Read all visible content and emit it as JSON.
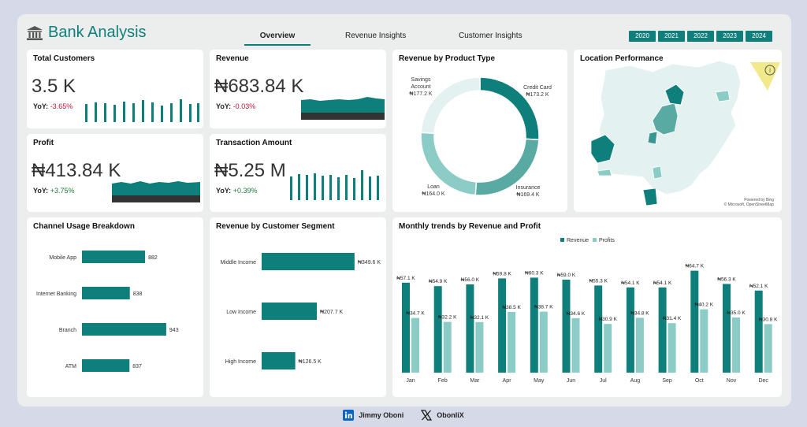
{
  "header": {
    "title": "Bank Analysis",
    "tabs": [
      "Overview",
      "Revenue Insights",
      "Customer Insights"
    ],
    "years": [
      "2020",
      "2021",
      "2022",
      "2023",
      "2024"
    ]
  },
  "kpis": {
    "customers": {
      "title": "Total Customers",
      "value": "3.5 K",
      "yoy_label": "YoY:",
      "yoy": "-3.65%"
    },
    "revenue": {
      "title": "Revenue",
      "value": "₦683.84 K",
      "yoy_label": "YoY:",
      "yoy": "-0.03%"
    },
    "profit": {
      "title": "Profit",
      "value": "₦413.84 K",
      "yoy_label": "YoY:",
      "yoy": "+3.75%"
    },
    "transaction": {
      "title": "Transaction Amount",
      "value": "₦5.25 M",
      "yoy_label": "YoY:",
      "yoy": "+0.39%"
    }
  },
  "location": {
    "title": "Location Performance",
    "credit_1": "Powered by Bing",
    "credit_2": "© Microsoft, OpenStreetMap",
    "info_icon": "info-icon"
  },
  "colors": {
    "teal": "#0f7f7b",
    "light_teal": "#8cccc7",
    "pale": "#e3f2f1"
  },
  "footer": {
    "linkedin": "Jimmy Oboni",
    "x": "ObonIiX"
  },
  "chart_data": [
    {
      "id": "product",
      "type": "pie",
      "title": "Revenue by Product Type",
      "labels": [
        "Savings Account",
        "Credit Card",
        "Insurance",
        "Loan"
      ],
      "display": [
        "₦177.2 K",
        "₦173.2 K",
        "₦169.4 K",
        "₦164.0 K"
      ],
      "values": [
        177.2,
        173.2,
        169.4,
        164.0
      ]
    },
    {
      "id": "channel",
      "type": "bar",
      "title": "Channel Usage Breakdown",
      "categories": [
        "Mobile App",
        "Internet Banking",
        "Branch",
        "ATM"
      ],
      "values": [
        882,
        838,
        943,
        837
      ],
      "display": [
        "882",
        "838",
        "943",
        "837"
      ],
      "xlim": [
        700,
        950
      ]
    },
    {
      "id": "segment",
      "type": "bar",
      "title": "Revenue by Customer Segment",
      "categories": [
        "Middle Income",
        "Low Income",
        "High Income"
      ],
      "values": [
        349.6,
        207.7,
        126.5
      ],
      "display": [
        "₦349.6 K",
        "₦207.7 K",
        "₦126.5 K"
      ],
      "xlim": [
        0,
        350
      ]
    },
    {
      "id": "monthly",
      "type": "bar",
      "title": "Monthly trends by Revenue and Profit",
      "categories": [
        "Jan",
        "Feb",
        "Mar",
        "Apr",
        "May",
        "Jun",
        "Jul",
        "Aug",
        "Sep",
        "Oct",
        "Nov",
        "Dec"
      ],
      "series": [
        {
          "name": "Revenue",
          "values": [
            57.1,
            54.9,
            56.0,
            59.8,
            60.3,
            59.0,
            55.3,
            54.1,
            54.1,
            64.7,
            56.3,
            52.1
          ],
          "display": [
            "₦57.1 K",
            "₦54.9 K",
            "₦56.0 K",
            "₦59.8 K",
            "₦60.3 K",
            "₦59.0 K",
            "₦55.3 K",
            "₦54.1 K",
            "₦54.1 K",
            "₦64.7 K",
            "₦56.3 K",
            "₦52.1 K"
          ]
        },
        {
          "name": "Profits",
          "values": [
            34.7,
            32.2,
            32.1,
            38.5,
            38.7,
            34.6,
            30.9,
            34.8,
            31.4,
            40.2,
            35.0,
            30.8
          ],
          "display": [
            "₦34.7 K",
            "₦32.2 K",
            "₦32.1 K",
            "₦38.5 K",
            "₦38.7 K",
            "₦34.6 K",
            "₦30.9 K",
            "₦34.8 K",
            "₦31.4 K",
            "₦40.2 K",
            "₦35.0 K",
            "₦30.8 K"
          ]
        }
      ],
      "ylim": [
        0,
        70
      ]
    }
  ]
}
